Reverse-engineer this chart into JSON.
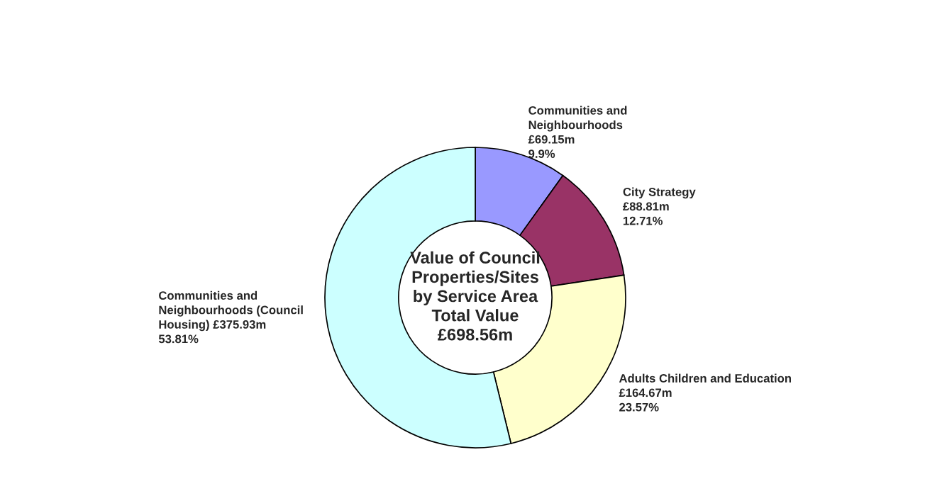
{
  "chart_data": {
    "type": "donut",
    "title": "Value of Council\nProperties/Sites\nby Service Area",
    "subtitle": "Total Value\n£698.56m",
    "categories": [
      "Communities and\nNeighbourhoods",
      "City Strategy",
      "Adults Children and Education",
      "Communities and\nNeighbourhoods (Council\nHousing)"
    ],
    "values": [
      9.9,
      12.71,
      23.57,
      53.81
    ],
    "value_labels": [
      "£69.15m\n9.9%",
      "£88.81m\n12.71%",
      "£164.67m\n23.57%",
      "£375.93m\n53.81%"
    ],
    "colors": [
      "#9999ff",
      "#993366",
      "#ffffcc",
      "#ccffff"
    ],
    "legend": false
  }
}
